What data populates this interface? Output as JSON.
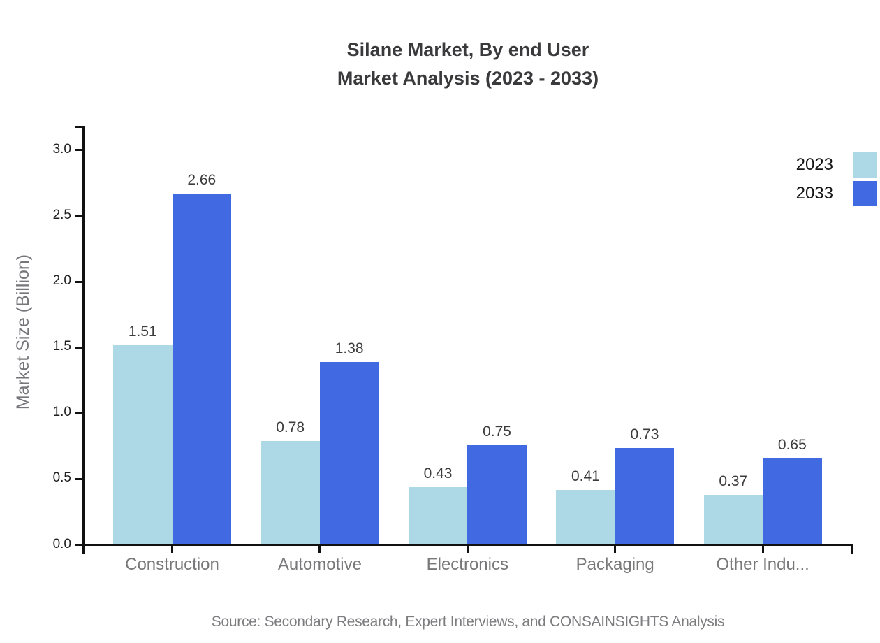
{
  "title": {
    "line1": "Silane Market, By end User",
    "line2": "Market Analysis (2023 - 2033)"
  },
  "source_note": "Source: Secondary Research, Expert Interviews, and CONSAINSIGHTS Analysis",
  "colors": {
    "series_2023": "#ADD8E6",
    "series_2033": "#4169E1",
    "axis": "#111111"
  },
  "chart_data": {
    "type": "bar",
    "title": "Silane Market, By end User Market Analysis (2023 - 2033)",
    "categories": [
      "Construction",
      "Automotive",
      "Electronics",
      "Packaging",
      "Other Indu..."
    ],
    "series": [
      {
        "name": "2023",
        "color": "#ADD8E6",
        "values": [
          1.51,
          0.78,
          0.43,
          0.41,
          0.37
        ]
      },
      {
        "name": "2033",
        "color": "#4169E1",
        "values": [
          2.66,
          1.38,
          0.75,
          0.73,
          0.65
        ]
      }
    ],
    "xlabel": "",
    "ylabel": "Market Size (Billion)",
    "yticks": [
      0.0,
      0.5,
      1.0,
      1.5,
      2.0,
      2.5,
      3.0
    ],
    "ylim": [
      0,
      3.2
    ],
    "grid": false,
    "legend_position": "top-right",
    "value_labels": true
  }
}
